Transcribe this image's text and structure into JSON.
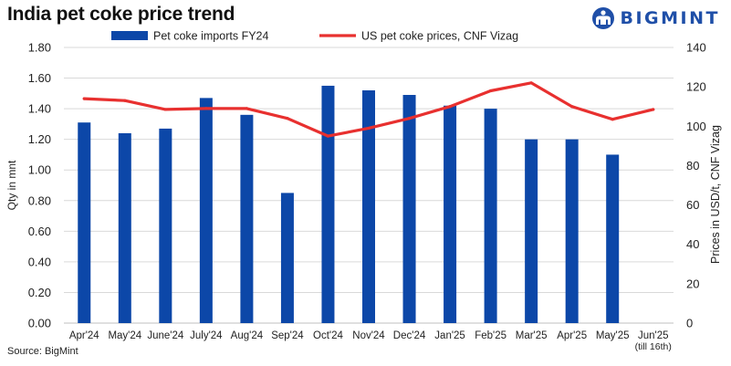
{
  "title": "India pet coke price trend",
  "brand": "BIGMINT",
  "source": "Source: BigMint",
  "colors": {
    "bar": "#0c47a8",
    "line": "#e8302f",
    "brand": "#1f4fa8"
  },
  "chart_data": {
    "type": "bar",
    "categories": [
      "Apr'24",
      "May'24",
      "June'24",
      "July'24",
      "Aug'24",
      "Sep'24",
      "Oct'24",
      "Nov'24",
      "Dec'24",
      "Jan'25",
      "Feb'25",
      "Mar'25",
      "Apr'25",
      "May'25",
      "Jun'25"
    ],
    "category_subtitle": {
      "Jun'25": "(till 16th)"
    },
    "series": [
      {
        "name": "Pet coke imports FY24",
        "type": "bar",
        "axis": "left",
        "values": [
          1.31,
          1.24,
          1.27,
          1.47,
          1.36,
          0.85,
          1.55,
          1.52,
          1.49,
          1.42,
          1.4,
          1.2,
          1.2,
          1.1,
          null
        ]
      },
      {
        "name": "US pet coke prices, CNF Vizag",
        "type": "line",
        "axis": "right",
        "values": [
          114,
          113,
          108.5,
          109,
          109,
          104,
          95,
          99,
          104,
          110,
          118,
          122,
          110,
          103.5,
          108.5
        ]
      }
    ],
    "ylabel": "Qty in mnt",
    "ylim": [
      0,
      1.8
    ],
    "yticks": [
      "0.00",
      "0.20",
      "0.40",
      "0.60",
      "0.80",
      "1.00",
      "1.20",
      "1.40",
      "1.60",
      "1.80"
    ],
    "y2label": "Prices in USD/t, CNF Vizag",
    "y2lim": [
      0,
      140
    ],
    "y2ticks": [
      "0",
      "20",
      "40",
      "60",
      "80",
      "100",
      "120",
      "140"
    ],
    "legend_position": "top",
    "grid": true
  }
}
